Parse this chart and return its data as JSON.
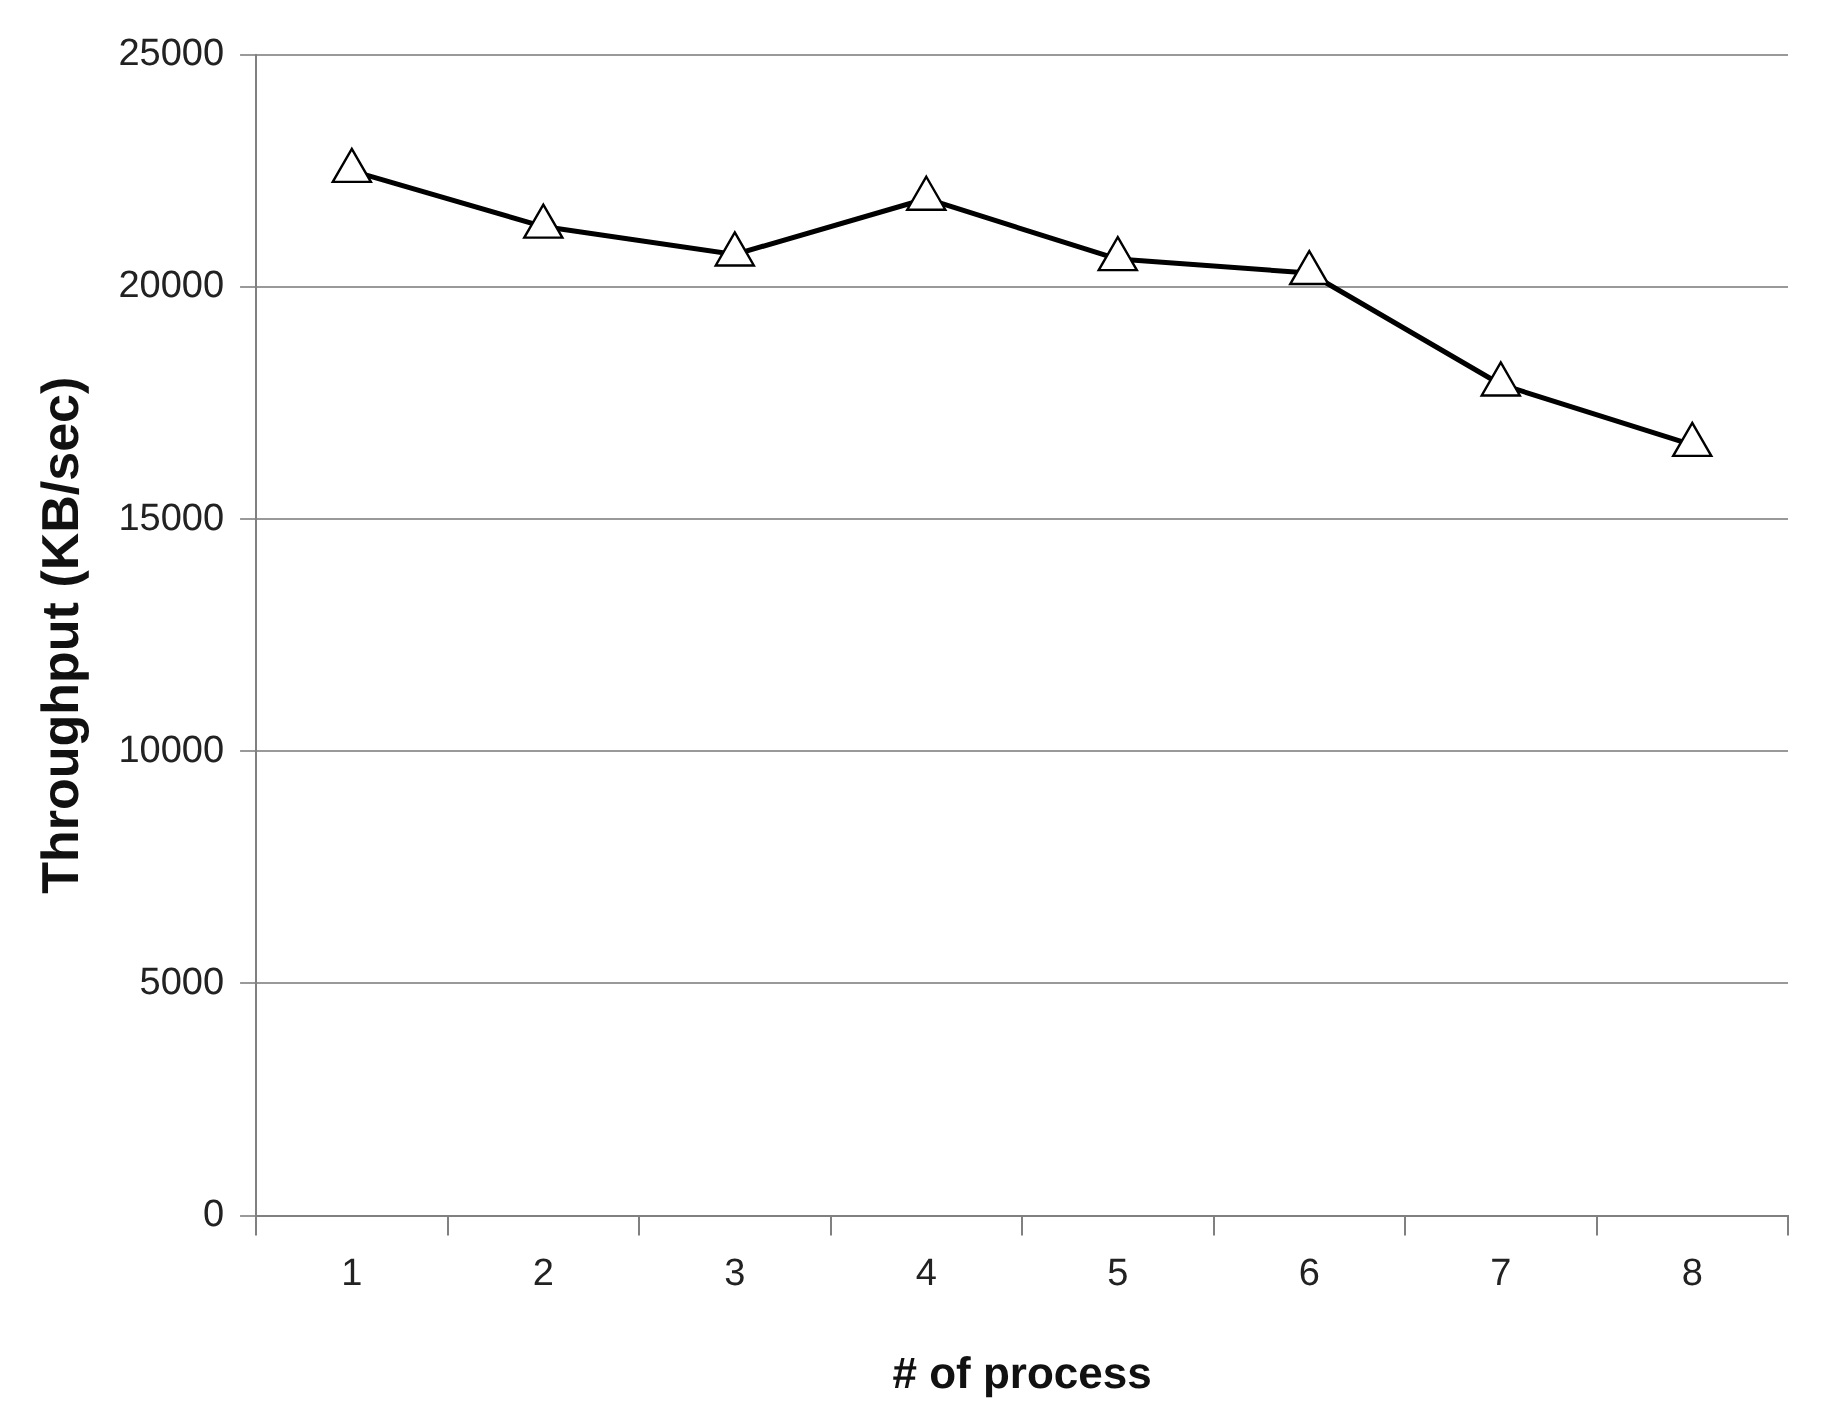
{
  "chart_data": {
    "type": "line",
    "xlabel": "# of process",
    "ylabel": "Throughput (KB/sec)",
    "categories": [
      "1",
      "2",
      "3",
      "4",
      "5",
      "6",
      "7",
      "8"
    ],
    "series": [
      {
        "color": "#000000",
        "values": [
          22500,
          21300,
          20700,
          21900,
          20600,
          20300,
          17900,
          16600
        ]
      }
    ],
    "ylim": [
      0,
      25000
    ],
    "yticks": [
      0,
      5000,
      10000,
      15000,
      20000,
      25000
    ],
    "grid": "y",
    "legend": false,
    "marker": "triangle",
    "line_style": "solid"
  }
}
